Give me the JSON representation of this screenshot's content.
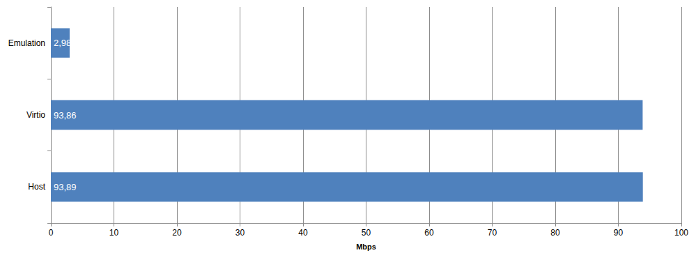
{
  "chart_data": {
    "type": "bar",
    "orientation": "horizontal",
    "categories": [
      "Emulation",
      "Virtio",
      "Host"
    ],
    "values": [
      2.98,
      93.86,
      93.89
    ],
    "value_labels": [
      "2,98",
      "93,86",
      "93,89"
    ],
    "data_labels": true,
    "color": "#4f81bd",
    "xlabel": "Mbps",
    "xlim": [
      0,
      100
    ],
    "xticks": [
      0,
      10,
      20,
      30,
      40,
      50,
      60,
      70,
      80,
      90,
      100
    ],
    "grid": true
  }
}
